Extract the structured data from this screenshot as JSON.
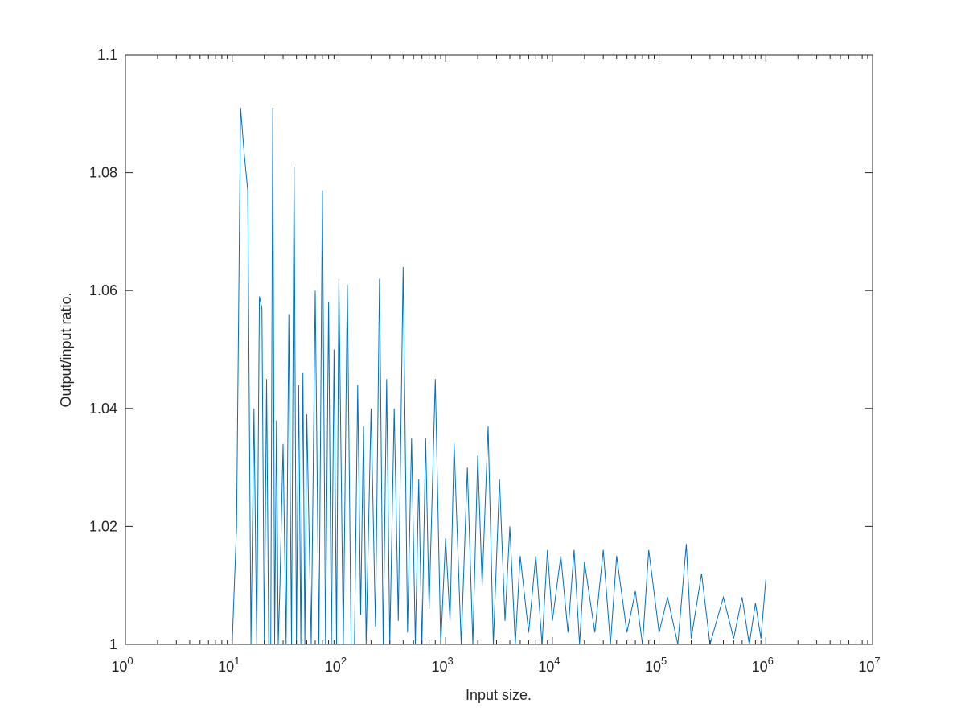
{
  "chart_data": {
    "type": "line",
    "title": "",
    "xlabel": "Input size.",
    "ylabel": "Output/input ratio.",
    "xscale": "log",
    "xlim": [
      1,
      10000000
    ],
    "ylim": [
      1,
      1.1
    ],
    "grid": false,
    "box": true,
    "x_tick_labels": [
      {
        "base": "10",
        "exp": "0"
      },
      {
        "base": "10",
        "exp": "1"
      },
      {
        "base": "10",
        "exp": "2"
      },
      {
        "base": "10",
        "exp": "3"
      },
      {
        "base": "10",
        "exp": "4"
      },
      {
        "base": "10",
        "exp": "5"
      },
      {
        "base": "10",
        "exp": "6"
      },
      {
        "base": "10",
        "exp": "7"
      }
    ],
    "x_tick_values": [
      1,
      10,
      100,
      1000,
      10000,
      100000,
      1000000,
      10000000
    ],
    "y_tick_labels": [
      "1",
      "1.02",
      "1.04",
      "1.06",
      "1.08",
      "1.1"
    ],
    "y_tick_values": [
      1,
      1.02,
      1.04,
      1.06,
      1.08,
      1.1
    ],
    "series": [
      {
        "color": "#0072bd",
        "x": [
          2,
          3,
          4,
          5,
          6,
          7,
          8,
          9,
          10,
          11,
          12,
          13,
          14,
          15,
          16,
          17,
          18,
          19,
          20,
          21,
          22,
          23,
          24,
          25,
          26,
          27,
          28,
          30,
          32,
          34,
          36,
          38,
          40,
          42,
          44,
          46,
          48,
          50,
          55,
          60,
          65,
          70,
          75,
          80,
          85,
          90,
          95,
          100,
          110,
          120,
          130,
          140,
          150,
          160,
          170,
          180,
          200,
          220,
          240,
          260,
          280,
          300,
          330,
          360,
          400,
          440,
          480,
          520,
          560,
          600,
          650,
          700,
          800,
          900,
          1000,
          1100,
          1200,
          1400,
          1600,
          1800,
          2000,
          2200,
          2500,
          2800,
          3200,
          3600,
          4000,
          4500,
          5000,
          6000,
          7000,
          8000,
          9000,
          10000,
          12000,
          14000,
          16000,
          18000,
          20000,
          25000,
          30000,
          35000,
          40000,
          50000,
          60000,
          70000,
          80000,
          100000,
          120000,
          150000,
          180000,
          200000,
          250000,
          300000,
          400000,
          500000,
          600000,
          700000,
          800000,
          900000,
          1000000
        ],
        "y": [
          1,
          1,
          1,
          1,
          1,
          1,
          1,
          1,
          1,
          1.02,
          1.091,
          1.083,
          1.077,
          1.0,
          1.04,
          1.0,
          1.059,
          1.057,
          1.0,
          1.045,
          1.0,
          1.0,
          1.091,
          1.0,
          1.038,
          1.0,
          1.01,
          1.034,
          1.0,
          1.056,
          1.0,
          1.081,
          1.0,
          1.044,
          1.0,
          1.046,
          1.0,
          1.039,
          1.0,
          1.06,
          1.0,
          1.077,
          1.0,
          1.058,
          1.0,
          1.05,
          1.0,
          1.062,
          1.0,
          1.061,
          1.0,
          1.0,
          1.044,
          1.005,
          1.037,
          1.0,
          1.04,
          1.003,
          1.062,
          1.0,
          1.045,
          1.0,
          1.04,
          1.004,
          1.064,
          1.002,
          1.035,
          1.0,
          1.028,
          1.0,
          1.035,
          1.006,
          1.045,
          1.0,
          1.018,
          1.004,
          1.034,
          1.0,
          1.03,
          1.0,
          1.032,
          1.01,
          1.037,
          1.0,
          1.028,
          1.004,
          1.02,
          1.0,
          1.015,
          1.002,
          1.015,
          1.0,
          1.016,
          1.004,
          1.015,
          1.002,
          1.016,
          1.0,
          1.014,
          1.002,
          1.016,
          1.0,
          1.015,
          1.002,
          1.009,
          1.0,
          1.016,
          1.002,
          1.008,
          1.0,
          1.017,
          1.001,
          1.012,
          1.0,
          1.008,
          1.001,
          1.008,
          1.0,
          1.007,
          1.001,
          1.011
        ]
      }
    ]
  }
}
